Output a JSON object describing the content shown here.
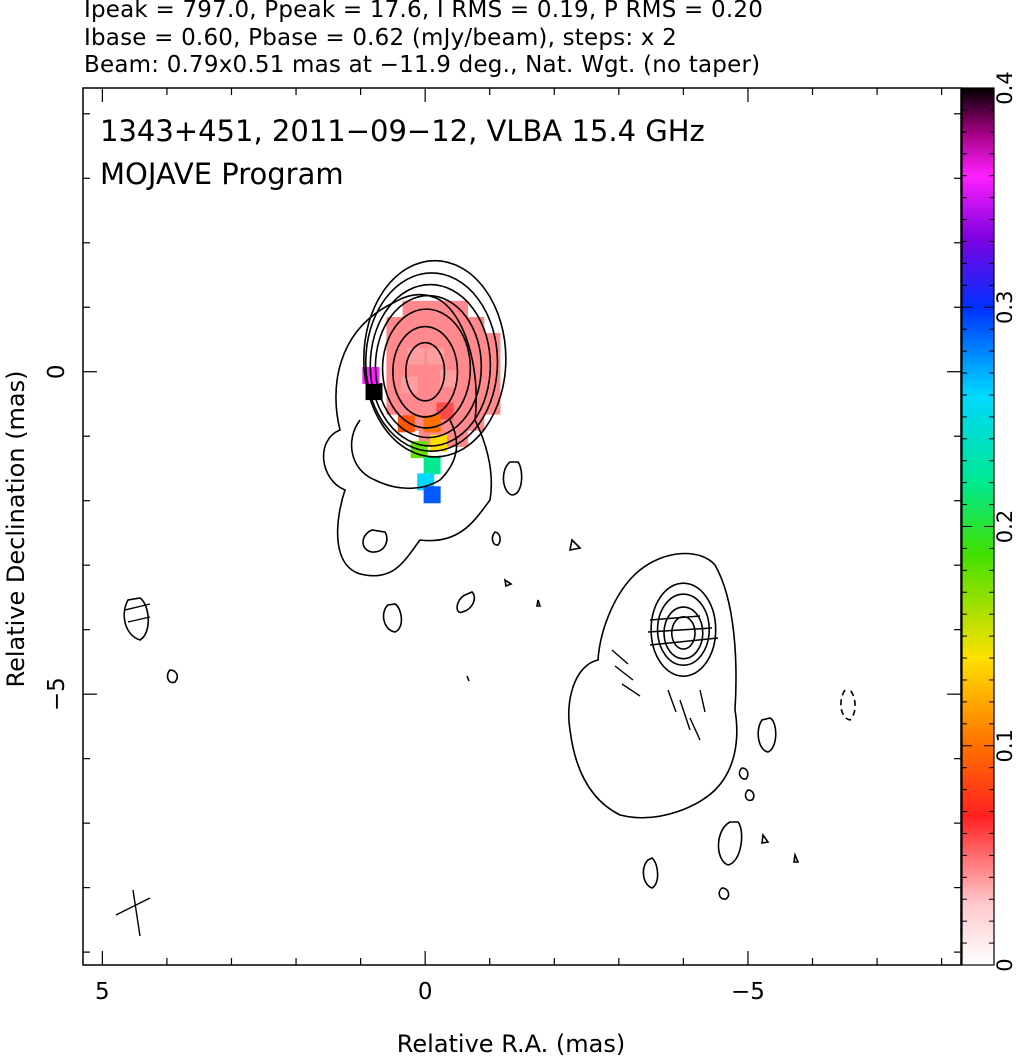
{
  "header": {
    "line1": "Ipeak = 797.0, Ppeak = 17.6, I RMS = 0.19, P RMS = 0.20",
    "line2": "Ibase = 0.60, Pbase = 0.62 (mJy/beam), steps: x 2",
    "line3": "Beam: 0.79x0.51 mas at −11.9 deg., Nat. Wgt. (no taper)"
  },
  "chart_data": {
    "type": "contour",
    "title": "1343+451, 2011−09−12, VLBA 15.4 GHz",
    "subtitle": "MOJAVE Program",
    "xlabel": "Relative R.A. (mas)",
    "ylabel": "Relative Declination (mas)",
    "xlim": [
      5.3,
      -8.3
    ],
    "ylim": [
      -9.2,
      4.4
    ],
    "xticks": [
      5,
      0,
      -5
    ],
    "xtick_labels": [
      "5",
      "0",
      "−5"
    ],
    "yticks": [
      0,
      -5
    ],
    "ytick_labels": [
      "0",
      "−5"
    ],
    "colorbar": {
      "min": 0,
      "max": 0.4,
      "ticks": [
        0,
        0.1,
        0.2,
        0.3,
        0.4
      ],
      "tick_labels": [
        "0",
        "0.1",
        "0.2",
        "0.3",
        "0.4"
      ]
    },
    "beam": {
      "major_mas": 0.79,
      "minor_mas": 0.51,
      "pa_deg": -11.9
    },
    "contour_base_mJy_per_beam": 0.6,
    "contour_step_factor": 2,
    "components": [
      {
        "name": "core",
        "ra": 0.0,
        "dec": 0.0,
        "levels": [
          {
            "rx": 0.3,
            "ry": 0.45,
            "cx": 0.0,
            "cy": 0.0
          },
          {
            "rx": 0.5,
            "ry": 0.7,
            "cx": 0.0,
            "cy": 0.0
          },
          {
            "rx": 0.68,
            "ry": 0.92,
            "cx": -0.02,
            "cy": 0.05
          },
          {
            "rx": 0.82,
            "ry": 1.1,
            "cx": -0.05,
            "cy": 0.08
          },
          {
            "rx": 0.93,
            "ry": 1.25,
            "cx": -0.08,
            "cy": 0.1
          },
          {
            "rx": 1.02,
            "ry": 1.38,
            "cx": -0.1,
            "cy": 0.15
          },
          {
            "rx": 1.1,
            "ry": 1.52,
            "cx": -0.15,
            "cy": 0.2
          }
        ]
      },
      {
        "name": "secondary",
        "ra": -4.0,
        "dec": -4.0,
        "levels": [
          {
            "rx": 0.18,
            "ry": 0.25,
            "cx": -4.0,
            "cy": -4.05
          },
          {
            "rx": 0.3,
            "ry": 0.4,
            "cx": -4.0,
            "cy": -4.05
          },
          {
            "rx": 0.4,
            "ry": 0.55,
            "cx": -4.0,
            "cy": -4.0
          },
          {
            "rx": 0.5,
            "ry": 0.72,
            "cx": -4.0,
            "cy": -4.0
          }
        ]
      }
    ],
    "polarization_fraction_pixels": [
      {
        "ra": -0.15,
        "dec": 0.25,
        "v": 0.04
      },
      {
        "ra": 0.15,
        "dec": 0.25,
        "v": 0.04
      },
      {
        "ra": -0.35,
        "dec": -0.1,
        "v": 0.04
      },
      {
        "ra": 0.25,
        "dec": -0.2,
        "v": 0.04
      },
      {
        "ra": -0.3,
        "dec": -0.6,
        "v": 0.06
      },
      {
        "ra": -0.1,
        "dec": -0.8,
        "v": 0.1
      },
      {
        "ra": 0.3,
        "dec": -0.8,
        "v": 0.09
      },
      {
        "ra": -0.2,
        "dec": -1.1,
        "v": 0.14
      },
      {
        "ra": 0.1,
        "dec": -1.2,
        "v": 0.18
      },
      {
        "ra": -0.1,
        "dec": -1.45,
        "v": 0.22
      },
      {
        "ra": 0.0,
        "dec": -1.7,
        "v": 0.26
      },
      {
        "ra": -0.1,
        "dec": -1.9,
        "v": 0.29
      },
      {
        "ra": 0.8,
        "dec": -0.3,
        "v": 0.4
      },
      {
        "ra": 0.85,
        "dec": -0.05,
        "v": 0.36
      }
    ]
  }
}
